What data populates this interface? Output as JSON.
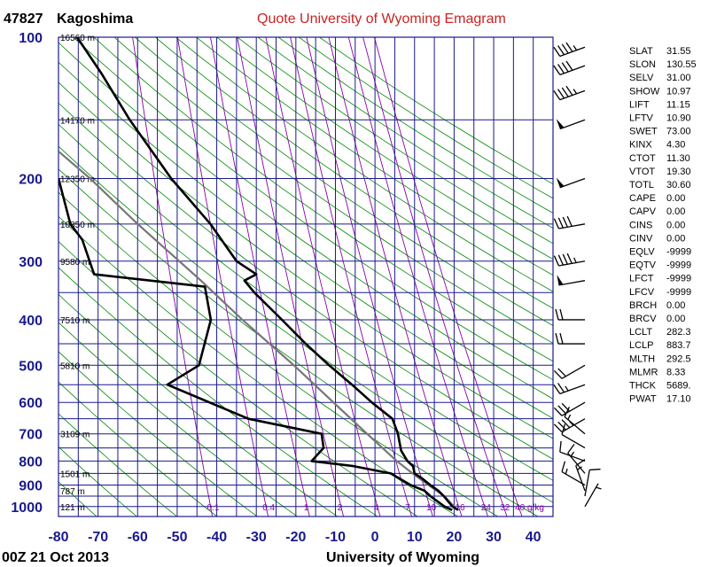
{
  "header": {
    "station_id": "47827",
    "station_name": "Kagoshima",
    "title": "Quote University of Wyoming Emagram",
    "title_color": "#cc2222"
  },
  "footer": {
    "time": "00Z 21 Oct 2013",
    "credit": "University of Wyoming"
  },
  "colors": {
    "grid": "#1a1a8c",
    "dry_adiabat": "#008800",
    "mixing_ratio": "#8800aa",
    "temperature": "#000000",
    "dewpoint": "#000000",
    "parcel": "#777777",
    "wind": "#000000"
  },
  "chart_data": {
    "type": "emagram",
    "x_axis": {
      "min": -80,
      "max": 45,
      "ticks": [
        -80,
        -70,
        -60,
        -50,
        -40,
        -30,
        -20,
        -10,
        0,
        10,
        20,
        30,
        40
      ]
    },
    "y_axis": {
      "scale": "log",
      "min": 100,
      "max": 1050,
      "ticks": [
        100,
        200,
        300,
        400,
        500,
        600,
        700,
        800,
        900,
        1000
      ]
    },
    "height_labels": [
      {
        "p": 100,
        "label": "16560 m"
      },
      {
        "p": 150,
        "label": "14170 m"
      },
      {
        "p": 200,
        "label": "12350 m"
      },
      {
        "p": 250,
        "label": "10850 m"
      },
      {
        "p": 300,
        "label": "9580 m"
      },
      {
        "p": 400,
        "label": "7510 m"
      },
      {
        "p": 500,
        "label": "5810 m"
      },
      {
        "p": 700,
        "label": "3109 m"
      },
      {
        "p": 850,
        "label": "1501 m"
      },
      {
        "p": 925,
        "label": "787 m"
      },
      {
        "p": 1000,
        "label": "121 m"
      }
    ],
    "mixing_ratio_labels": [
      "0.1",
      "0.4",
      "1",
      "2",
      "4",
      "7",
      "10",
      "16",
      "24",
      "32",
      "40 g/kg"
    ],
    "mixing_ratio_values": [
      0.1,
      0.4,
      1,
      2,
      4,
      7,
      10,
      16,
      24,
      32,
      40
    ],
    "temperature": [
      {
        "p": 1017,
        "t": 21.0
      },
      {
        "p": 1000,
        "t": 19.6
      },
      {
        "p": 950,
        "t": 17.4
      },
      {
        "p": 925,
        "t": 16.0
      },
      {
        "p": 900,
        "t": 14.0
      },
      {
        "p": 870,
        "t": 11.8
      },
      {
        "p": 850,
        "t": 10.0
      },
      {
        "p": 820,
        "t": 9.6
      },
      {
        "p": 800,
        "t": 8.2
      },
      {
        "p": 760,
        "t": 6.6
      },
      {
        "p": 700,
        "t": 5.8
      },
      {
        "p": 650,
        "t": 4.4
      },
      {
        "p": 600,
        "t": -0.8
      },
      {
        "p": 550,
        "t": -5.8
      },
      {
        "p": 500,
        "t": -11.6
      },
      {
        "p": 450,
        "t": -17.5
      },
      {
        "p": 400,
        "t": -23.5
      },
      {
        "p": 350,
        "t": -30.5
      },
      {
        "p": 330,
        "t": -33.0
      },
      {
        "p": 320,
        "t": -30.0
      },
      {
        "p": 300,
        "t": -35.0
      },
      {
        "p": 250,
        "t": -41.6
      },
      {
        "p": 200,
        "t": -51.5
      },
      {
        "p": 150,
        "t": -62.0
      },
      {
        "p": 120,
        "t": -69.0
      },
      {
        "p": 100,
        "t": -75.3
      }
    ],
    "dewpoint": [
      {
        "p": 1017,
        "t": 19.5
      },
      {
        "p": 1000,
        "t": 17.6
      },
      {
        "p": 950,
        "t": 14.0
      },
      {
        "p": 925,
        "t": 12.5
      },
      {
        "p": 900,
        "t": 9.0
      },
      {
        "p": 850,
        "t": 4.0
      },
      {
        "p": 820,
        "t": -5.5
      },
      {
        "p": 800,
        "t": -16.0
      },
      {
        "p": 750,
        "t": -13.0
      },
      {
        "p": 700,
        "t": -13.5
      },
      {
        "p": 650,
        "t": -32.0
      },
      {
        "p": 550,
        "t": -52.5
      },
      {
        "p": 500,
        "t": -44.5
      },
      {
        "p": 400,
        "t": -41.5
      },
      {
        "p": 340,
        "t": -43.0
      },
      {
        "p": 320,
        "t": -71.0
      },
      {
        "p": 270,
        "t": -74.0
      },
      {
        "p": 250,
        "t": -77.0
      },
      {
        "p": 200,
        "t": -80.0
      }
    ],
    "parcel": [
      {
        "p": 1000,
        "t": 20.0
      },
      {
        "p": 950,
        "t": 17.5
      },
      {
        "p": 900,
        "t": 13.5
      },
      {
        "p": 850,
        "t": 9.5
      },
      {
        "p": 800,
        "t": 5.5
      },
      {
        "p": 700,
        "t": -2.0
      },
      {
        "p": 600,
        "t": -10.5
      },
      {
        "p": 500,
        "t": -20.5
      },
      {
        "p": 400,
        "t": -33.5
      },
      {
        "p": 330,
        "t": -44.0
      },
      {
        "p": 250,
        "t": -60.0
      },
      {
        "p": 200,
        "t": -72.0
      },
      {
        "p": 175,
        "t": -80.0
      }
    ],
    "wind_barbs": [
      {
        "p": 1000,
        "dir": 30,
        "spd": 5
      },
      {
        "p": 950,
        "dir": 10,
        "spd": 10
      },
      {
        "p": 925,
        "dir": 340,
        "spd": 15
      },
      {
        "p": 900,
        "dir": 300,
        "spd": 15
      },
      {
        "p": 850,
        "dir": 320,
        "spd": 15
      },
      {
        "p": 800,
        "dir": 290,
        "spd": 10
      },
      {
        "p": 750,
        "dir": 300,
        "spd": 10
      },
      {
        "p": 700,
        "dir": 310,
        "spd": 15
      },
      {
        "p": 650,
        "dir": 240,
        "spd": 35
      },
      {
        "p": 600,
        "dir": 240,
        "spd": 30
      },
      {
        "p": 550,
        "dir": 250,
        "spd": 25
      },
      {
        "p": 500,
        "dir": 240,
        "spd": 20
      },
      {
        "p": 450,
        "dir": 270,
        "spd": 20
      },
      {
        "p": 400,
        "dir": 270,
        "spd": 20
      },
      {
        "p": 330,
        "dir": 260,
        "spd": 50
      },
      {
        "p": 300,
        "dir": 260,
        "spd": 45
      },
      {
        "p": 250,
        "dir": 260,
        "spd": 40
      },
      {
        "p": 200,
        "dir": 250,
        "spd": 50
      },
      {
        "p": 150,
        "dir": 250,
        "spd": 50
      },
      {
        "p": 130,
        "dir": 250,
        "spd": 45
      },
      {
        "p": 115,
        "dir": 250,
        "spd": 40
      },
      {
        "p": 105,
        "dir": 250,
        "spd": 45
      }
    ],
    "indices": [
      {
        "name": "SLAT",
        "value": "31.55"
      },
      {
        "name": "SLON",
        "value": "130.55"
      },
      {
        "name": "SELV",
        "value": "31.00"
      },
      {
        "name": "SHOW",
        "value": "10.97"
      },
      {
        "name": "LIFT",
        "value": "11.15"
      },
      {
        "name": "LFTV",
        "value": "10.90"
      },
      {
        "name": "SWET",
        "value": "73.00"
      },
      {
        "name": "KINX",
        "value": "4.30"
      },
      {
        "name": "CTOT",
        "value": "11.30"
      },
      {
        "name": "VTOT",
        "value": "19.30"
      },
      {
        "name": "TOTL",
        "value": "30.60"
      },
      {
        "name": "CAPE",
        "value": "0.00"
      },
      {
        "name": "CAPV",
        "value": "0.00"
      },
      {
        "name": "CINS",
        "value": "0.00"
      },
      {
        "name": "CINV",
        "value": "0.00"
      },
      {
        "name": "EQLV",
        "value": "-9999"
      },
      {
        "name": "EQTV",
        "value": "-9999"
      },
      {
        "name": "LFCT",
        "value": "-9999"
      },
      {
        "name": "LFCV",
        "value": "-9999"
      },
      {
        "name": "BRCH",
        "value": "0.00"
      },
      {
        "name": "BRCV",
        "value": "0.00"
      },
      {
        "name": "LCLT",
        "value": "282.3"
      },
      {
        "name": "LCLP",
        "value": "883.7"
      },
      {
        "name": "MLTH",
        "value": "292.5"
      },
      {
        "name": "MLMR",
        "value": "8.33"
      },
      {
        "name": "THCK",
        "value": "5689."
      },
      {
        "name": "PWAT",
        "value": "17.10"
      }
    ]
  }
}
